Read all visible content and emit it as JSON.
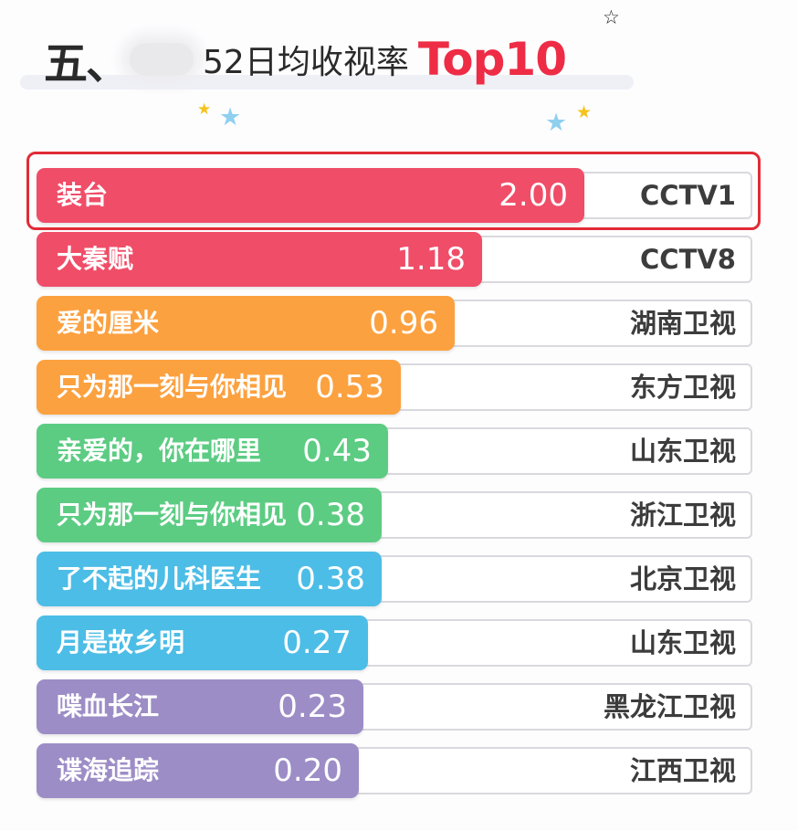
{
  "title": {
    "prefix": "五、",
    "main": "52日均收视率",
    "accent": "Top10"
  },
  "colors": {
    "red": "#f04d68",
    "orange": "#fca13f",
    "green": "#5ccc83",
    "blue": "#4cbde6",
    "purple": "#9d8dc6",
    "highlight": "#e12b36",
    "accent": "#ee2c45"
  },
  "decor": {
    "stars": [
      "star-outline-icon",
      "star-gold-icon",
      "star-blue-icon",
      "star-blue-icon",
      "star-gold-icon"
    ]
  },
  "chart_data": {
    "type": "bar",
    "orientation": "horizontal",
    "title": "52日均收视率 Top10",
    "highlighted_rank": 1,
    "categories": [
      "装台",
      "大秦赋",
      "爱的厘米",
      "只为那一刻与你相见",
      "亲爱的，你在哪里",
      "只为那一刻与你相见",
      "了不起的儿科医生",
      "月是故乡明",
      "喋血长江",
      "谍海追踪"
    ],
    "values": [
      2.0,
      1.18,
      0.96,
      0.53,
      0.43,
      0.38,
      0.38,
      0.27,
      0.23,
      0.2
    ],
    "rows": [
      {
        "name": "装台",
        "value": "2.00",
        "channel": "CCTV1",
        "color": "red"
      },
      {
        "name": "大秦赋",
        "value": "1.18",
        "channel": "CCTV8",
        "color": "red"
      },
      {
        "name": "爱的厘米",
        "value": "0.96",
        "channel": "湖南卫视",
        "color": "orange"
      },
      {
        "name": "只为那一刻与你相见",
        "value": "0.53",
        "channel": "东方卫视",
        "color": "orange"
      },
      {
        "name": "亲爱的，你在哪里",
        "value": "0.43",
        "channel": "山东卫视",
        "color": "green"
      },
      {
        "name": "只为那一刻与你相见",
        "value": "0.38",
        "channel": "浙江卫视",
        "color": "green"
      },
      {
        "name": "了不起的儿科医生",
        "value": "0.38",
        "channel": "北京卫视",
        "color": "blue"
      },
      {
        "name": "月是故乡明",
        "value": "0.27",
        "channel": "山东卫视",
        "color": "blue"
      },
      {
        "name": "喋血长江",
        "value": "0.23",
        "channel": "黑龙江卫视",
        "color": "purple"
      },
      {
        "name": "谍海追踪",
        "value": "0.20",
        "channel": "江西卫视",
        "color": "purple"
      }
    ]
  }
}
